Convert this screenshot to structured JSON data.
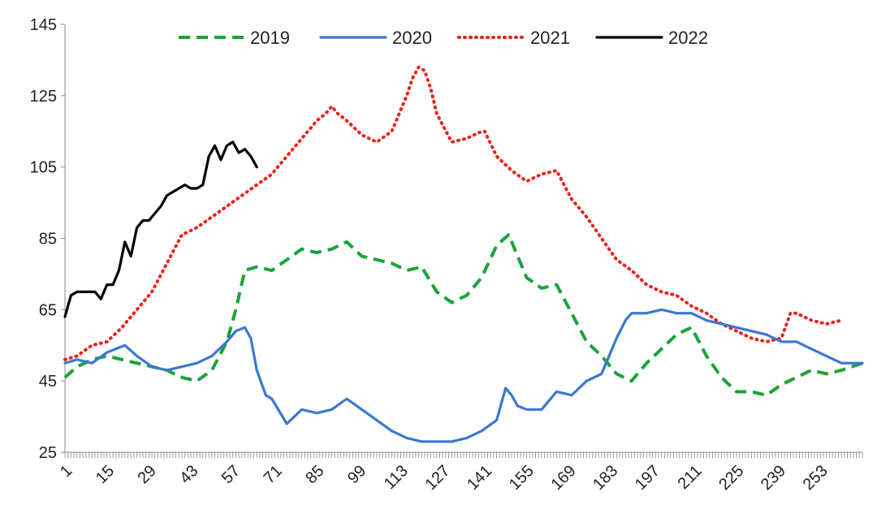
{
  "chart_data": {
    "type": "line",
    "title": "",
    "xlabel": "",
    "ylabel": "",
    "ylim": [
      25,
      145
    ],
    "yticks": [
      25,
      45,
      65,
      85,
      105,
      125,
      145
    ],
    "xlim": [
      1,
      267
    ],
    "xticks": [
      1,
      15,
      29,
      43,
      57,
      71,
      85,
      99,
      113,
      127,
      141,
      155,
      169,
      183,
      197,
      211,
      225,
      239,
      253
    ],
    "legend_position": "top",
    "series": [
      {
        "name": "2019",
        "color": "#1aa33a",
        "style": "dashed",
        "x": [
          1,
          5,
          10,
          15,
          20,
          25,
          30,
          35,
          40,
          45,
          50,
          55,
          58,
          61,
          65,
          70,
          75,
          80,
          85,
          90,
          95,
          100,
          105,
          110,
          115,
          120,
          125,
          130,
          135,
          140,
          145,
          149,
          152,
          155,
          160,
          165,
          170,
          175,
          180,
          185,
          190,
          195,
          200,
          205,
          210,
          215,
          220,
          225,
          230,
          235,
          240,
          245,
          250,
          255,
          260,
          267
        ],
        "y": [
          46,
          49,
          51,
          52,
          51,
          50,
          49,
          48,
          46,
          45,
          48,
          56,
          65,
          76,
          77,
          76,
          79,
          82,
          81,
          82,
          84,
          80,
          79,
          78,
          76,
          77,
          70,
          67,
          69,
          74,
          83,
          86,
          80,
          74,
          71,
          72,
          64,
          56,
          52,
          47,
          45,
          50,
          54,
          58,
          60,
          52,
          46,
          42,
          42,
          41,
          44,
          46,
          48,
          47,
          48,
          50
        ]
      },
      {
        "name": "2020",
        "color": "#3b78d0",
        "style": "solid",
        "x": [
          1,
          5,
          10,
          15,
          18,
          21,
          25,
          30,
          35,
          40,
          45,
          50,
          55,
          58,
          61,
          63,
          65,
          68,
          70,
          75,
          80,
          85,
          90,
          95,
          100,
          105,
          110,
          115,
          120,
          125,
          127,
          130,
          135,
          140,
          145,
          148,
          150,
          152,
          155,
          160,
          165,
          170,
          175,
          180,
          185,
          188,
          190,
          195,
          200,
          205,
          210,
          215,
          220,
          225,
          230,
          235,
          240,
          245,
          250,
          255,
          260,
          267
        ],
        "y": [
          50,
          51,
          50,
          53,
          54,
          55,
          52,
          49,
          48,
          49,
          50,
          52,
          56,
          59,
          60,
          57,
          48,
          41,
          40,
          33,
          37,
          36,
          37,
          40,
          37,
          34,
          31,
          29,
          28,
          28,
          28,
          28,
          29,
          31,
          34,
          43,
          41,
          38,
          37,
          37,
          42,
          41,
          45,
          47,
          57,
          62,
          64,
          64,
          65,
          64,
          64,
          62,
          61,
          60,
          59,
          58,
          56,
          56,
          54,
          52,
          50,
          50
        ]
      },
      {
        "name": "2021",
        "color": "#e8231e",
        "style": "dotted",
        "x": [
          1,
          5,
          10,
          15,
          20,
          25,
          30,
          35,
          40,
          45,
          50,
          55,
          60,
          65,
          70,
          75,
          80,
          85,
          88,
          90,
          92,
          95,
          100,
          105,
          110,
          115,
          117,
          119,
          121,
          123,
          125,
          130,
          135,
          140,
          141,
          145,
          150,
          155,
          160,
          165,
          170,
          175,
          180,
          185,
          190,
          195,
          200,
          205,
          210,
          215,
          220,
          225,
          230,
          235,
          240,
          243,
          245,
          250,
          255,
          260
        ],
        "y": [
          51,
          52,
          55,
          56,
          60,
          65,
          70,
          78,
          86,
          88,
          91,
          94,
          97,
          100,
          103,
          108,
          113,
          118,
          120,
          122,
          120,
          118,
          114,
          112,
          115,
          125,
          130,
          133,
          132,
          127,
          120,
          112,
          113,
          115,
          115,
          108,
          104,
          101,
          103,
          104,
          96,
          91,
          85,
          79,
          76,
          72,
          70,
          69,
          66,
          64,
          61,
          59,
          57,
          56,
          57,
          64,
          64,
          62,
          61,
          62
        ]
      },
      {
        "name": "2022",
        "color": "#000000",
        "style": "solid",
        "x": [
          1,
          3,
          5,
          7,
          9,
          11,
          13,
          15,
          17,
          19,
          21,
          23,
          25,
          27,
          29,
          31,
          33,
          35,
          37,
          39,
          41,
          43,
          45,
          47,
          49,
          51,
          53,
          55,
          57,
          59,
          61,
          63,
          65
        ],
        "y": [
          63,
          69,
          70,
          70,
          70,
          70,
          68,
          72,
          72,
          76,
          84,
          80,
          88,
          90,
          90,
          92,
          94,
          97,
          98,
          99,
          100,
          99,
          99,
          100,
          108,
          111,
          107,
          111,
          112,
          109,
          110,
          108,
          105
        ]
      }
    ]
  }
}
